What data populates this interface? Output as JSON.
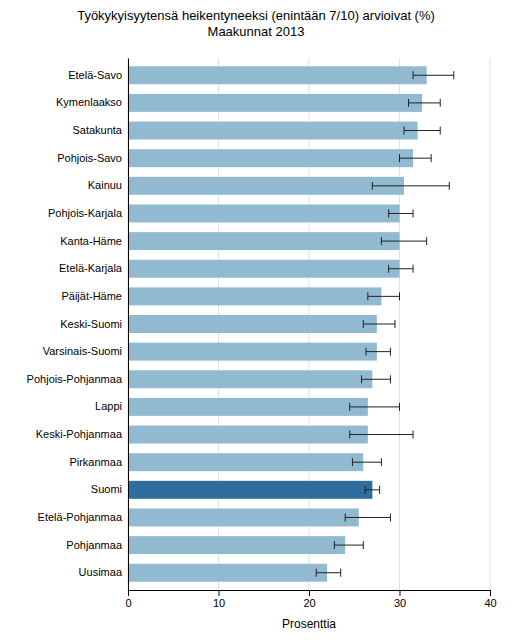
{
  "chart_data": {
    "type": "bar",
    "orientation": "horizontal",
    "title": "Työkykyisyytensä heikentyneeksi (enintään 7/10) arvioivat (%)\nMaakunnat 2013",
    "x_label": "Prosenttia",
    "categories": [
      "Etelä-Savo",
      "Kymenlaakso",
      "Satakunta",
      "Pohjois-Savo",
      "Kainuu",
      "Pohjois-Karjala",
      "Kanta-Häme",
      "Etelä-Karjala",
      "Päijät-Häme",
      "Keski-Suomi",
      "Varsinais-Suomi",
      "Pohjois-Pohjanmaa",
      "Lappi",
      "Keski-Pohjanmaa",
      "Pirkanmaa",
      "Suomi",
      "Etelä-Pohjanmaa",
      "Pohjanmaa",
      "Uusimaa"
    ],
    "values": [
      33.0,
      32.5,
      32.0,
      31.5,
      30.5,
      30.0,
      30.0,
      30.0,
      28.0,
      27.5,
      27.5,
      27.0,
      26.5,
      26.5,
      26.0,
      27.0,
      25.5,
      24.0,
      22.0
    ],
    "error_lower": [
      1.5,
      1.5,
      1.5,
      1.5,
      3.5,
      1.2,
      2.0,
      1.2,
      1.5,
      1.5,
      1.2,
      1.2,
      2.0,
      2.0,
      1.2,
      0.8,
      1.5,
      1.2,
      1.2
    ],
    "error_upper": [
      3.0,
      2.0,
      2.5,
      2.0,
      5.0,
      1.5,
      3.0,
      1.5,
      2.0,
      2.0,
      1.5,
      2.0,
      3.5,
      5.0,
      2.0,
      0.8,
      3.5,
      2.0,
      1.5
    ],
    "colors": [
      "#91b9d0",
      "#91b9d0",
      "#91b9d0",
      "#91b9d0",
      "#91b9d0",
      "#91b9d0",
      "#91b9d0",
      "#91b9d0",
      "#91b9d0",
      "#91b9d0",
      "#91b9d0",
      "#91b9d0",
      "#91b9d0",
      "#91b9d0",
      "#91b9d0",
      "#2e6d9e",
      "#91b9d0",
      "#91b9d0",
      "#91b9d0"
    ],
    "xlim": [
      0,
      40
    ],
    "xticks": [
      0,
      10,
      20,
      30,
      40
    ],
    "grid": true
  }
}
